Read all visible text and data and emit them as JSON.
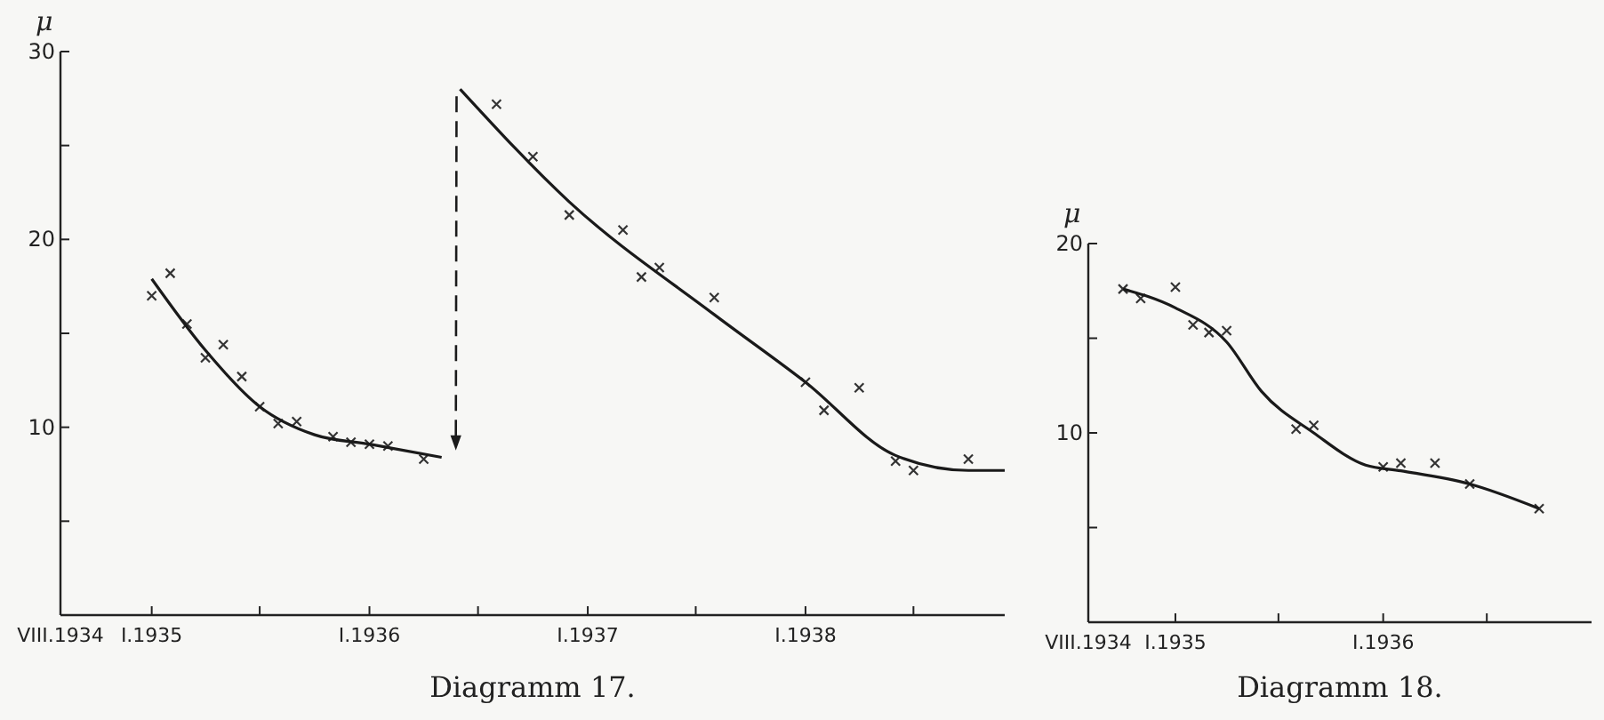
{
  "chart_data": [
    {
      "type": "scatter",
      "title": "Diagramm 17.",
      "ylabel": "μ",
      "xlim": [
        "1934-08",
        "1938-12"
      ],
      "ylim": [
        0,
        30
      ],
      "xticks": [
        {
          "value": "1934-08",
          "label": "VIII.1934"
        },
        {
          "value": "1935-01",
          "label": "I.1935"
        },
        {
          "value": "1935-07",
          "label": null
        },
        {
          "value": "1936-01",
          "label": "I.1936"
        },
        {
          "value": "1936-07",
          "label": null
        },
        {
          "value": "1937-01",
          "label": "I.1937"
        },
        {
          "value": "1937-07",
          "label": null
        },
        {
          "value": "1938-01",
          "label": "I.1938"
        },
        {
          "value": "1938-07",
          "label": null
        }
      ],
      "yticks": [
        {
          "value": 5,
          "label": null
        },
        10,
        {
          "value": 15,
          "label": null
        },
        20,
        {
          "value": 25,
          "label": null
        },
        30
      ],
      "series": [
        {
          "type": "scatter",
          "marker": "cross",
          "color": "#333333",
          "x": [
            "1935-01",
            "1935-02",
            "1935-03",
            "1935-04",
            "1935-05",
            "1935-06",
            "1935-07",
            "1935-08",
            "1935-09",
            "1935-11",
            "1935-12",
            "1936-01",
            "1936-02",
            "1936-04",
            "1936-08",
            "1936-10",
            "1936-12",
            "1937-03",
            "1937-04",
            "1937-05",
            "1937-08",
            "1938-01",
            "1938-02",
            "1938-04",
            "1938-06",
            "1938-07",
            "1938-10"
          ],
          "values": [
            17.0,
            18.2,
            15.5,
            13.7,
            14.4,
            12.7,
            11.1,
            10.2,
            10.3,
            9.5,
            9.2,
            9.1,
            9.0,
            8.3,
            27.2,
            24.4,
            21.3,
            20.5,
            18.0,
            18.5,
            16.9,
            12.4,
            10.9,
            12.1,
            8.2,
            7.7,
            8.3
          ]
        },
        {
          "type": "line",
          "color": "#1a1a1a",
          "x": [
            "1935-01",
            "1935-04",
            "1935-07",
            "1935-10",
            "1936-01",
            "1936-05"
          ],
          "values": [
            17.9,
            14.1,
            11.1,
            9.6,
            9.1,
            8.4
          ]
        },
        {
          "type": "line",
          "color": "#1a1a1a",
          "x": [
            "1936-06",
            "1936-12",
            "1937-08",
            "1938-01",
            "1938-06",
            "1938-10",
            "1938-12"
          ],
          "values": [
            28.0,
            22.0,
            16.0,
            12.4,
            8.5,
            7.7,
            7.7
          ]
        }
      ]
    },
    {
      "type": "scatter",
      "title": "Diagramm 18.",
      "ylabel": "μ",
      "xlim": [
        "1934-08",
        "1937-01"
      ],
      "ylim": [
        0,
        20
      ],
      "xticks": [
        {
          "value": "1934-08",
          "label": "VIII.1934"
        },
        {
          "value": "1935-01",
          "label": "I.1935"
        },
        {
          "value": "1935-07",
          "label": null
        },
        {
          "value": "1936-01",
          "label": "I.1936"
        },
        {
          "value": "1936-07",
          "label": null
        }
      ],
      "yticks": [
        {
          "value": 5,
          "label": null
        },
        10,
        {
          "value": 15,
          "label": null
        },
        20
      ],
      "series": [
        {
          "type": "scatter",
          "marker": "cross",
          "color": "#333333",
          "x": [
            "1934-10",
            "1934-11",
            "1935-01",
            "1935-02",
            "1935-03",
            "1935-04",
            "1935-08",
            "1935-09",
            "1936-01",
            "1936-02",
            "1936-04",
            "1936-06",
            "1936-10"
          ],
          "values": [
            17.6,
            17.1,
            17.7,
            15.7,
            15.3,
            15.4,
            10.2,
            10.4,
            8.2,
            8.4,
            8.4,
            7.3,
            6.0
          ]
        },
        {
          "type": "line",
          "color": "#1a1a1a",
          "x": [
            "1934-10",
            "1935-01",
            "1935-04",
            "1935-06",
            "1935-09",
            "1935-12",
            "1936-02",
            "1936-06",
            "1936-10"
          ],
          "values": [
            17.6,
            16.6,
            14.8,
            12.2,
            10.0,
            8.3,
            8.0,
            7.3,
            6.0
          ]
        }
      ]
    }
  ]
}
